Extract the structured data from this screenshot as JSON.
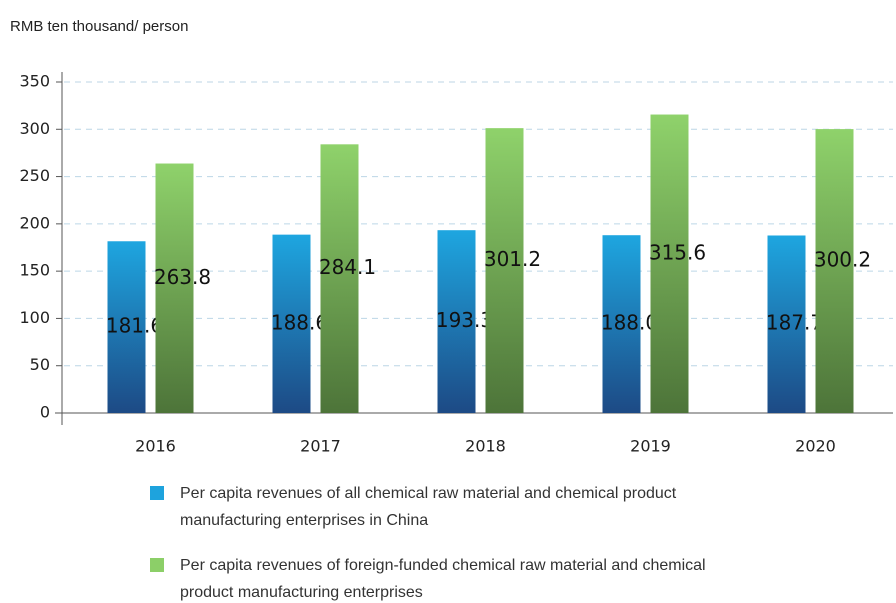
{
  "chart_data": {
    "type": "bar",
    "y_label": "RMB ten thousand/ person",
    "categories": [
      "2016",
      "2017",
      "2018",
      "2019",
      "2020"
    ],
    "series": [
      {
        "name": "Per capita revenues of all chemical raw material and chemical product manufacturing enterprises in China",
        "color": "#1ea3dd",
        "values": [
          181.6,
          188.6,
          193.3,
          188.0,
          187.7
        ],
        "value_labels": [
          "181.6",
          "188.6",
          "193.3",
          "188.0",
          "187.7"
        ]
      },
      {
        "name": "Per capita revenues of foreign-funded chemical raw material and chemical product manufacturing enterprises",
        "color": "#8ccf68",
        "values": [
          263.8,
          284.1,
          301.2,
          315.6,
          300.2
        ]
      }
    ],
    "ylim": [
      0,
      350
    ],
    "yticks": [
      0,
      50,
      100,
      150,
      200,
      250,
      300,
      350
    ],
    "grid": true
  }
}
